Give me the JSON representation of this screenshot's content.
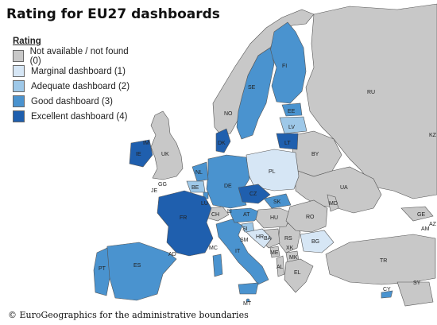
{
  "title": "Rating for EU27 dashboards",
  "legend": {
    "title": "Rating",
    "items": [
      {
        "label": "Not available / not found (0)",
        "color": "#c8c8c8"
      },
      {
        "label": "Marginal dashboard (1)",
        "color": "#d6e6f5"
      },
      {
        "label": "Adequate dashboard (2)",
        "color": "#9ec8e8"
      },
      {
        "label": "Good dashboard (3)",
        "color": "#4a93cf"
      },
      {
        "label": "Excellent dashboard (4)",
        "color": "#1f5fae"
      }
    ]
  },
  "credit": "© EuroGeographics for the administrative boundaries",
  "colors": {
    "sea": "#ffffff",
    "non_eu": "#c8c8c8",
    "border": "#555555"
  },
  "country_labels": {
    "RU": "RU",
    "FI": "FI",
    "SE": "SE",
    "NO": "NO",
    "EE": "EE",
    "LV": "LV",
    "LT": "LT",
    "BY": "BY",
    "PL": "PL",
    "DE": "DE",
    "DK": "DK",
    "NL": "NL",
    "BE": "BE",
    "LU": "LU",
    "FR": "FR",
    "UK": "UK",
    "IE": "IE",
    "ES": "ES",
    "PT": "PT",
    "IT": "IT",
    "CH": "CH",
    "AT": "AT",
    "CZ": "CZ",
    "SK": "SK",
    "HU": "HU",
    "SI": "SI",
    "HR": "HR",
    "BA": "BA",
    "RS": "RS",
    "ME": "ME",
    "XK": "XK",
    "MK": "MK",
    "AL": "AL",
    "EL": "EL",
    "BG": "BG",
    "RO": "RO",
    "MD": "MD",
    "UA": "UA",
    "TR": "TR",
    "GE": "GE",
    "AM": "AM",
    "AZ": "AZ",
    "SY": "SY",
    "CY": "CY",
    "MT": "MT",
    "SM": "SM",
    "MC": "MC",
    "AD": "AD",
    "LI": "LI",
    "GG": "GG",
    "JE": "JE",
    "IM": "IM",
    "KZ": "KZ"
  }
}
